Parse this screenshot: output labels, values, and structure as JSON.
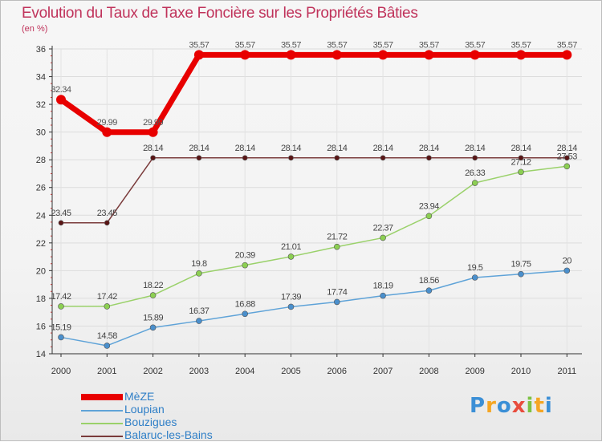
{
  "chart_data": {
    "type": "line",
    "title": "Evolution du Taux de Taxe Foncière sur les Propriétés Bâties",
    "unit": "(en %)",
    "x": [
      "2000",
      "2001",
      "2002",
      "2003",
      "2004",
      "2005",
      "2006",
      "2007",
      "2008",
      "2009",
      "2010",
      "2011"
    ],
    "ylim": [
      14,
      36
    ],
    "yticks": [
      "14",
      "16",
      "18",
      "20",
      "22",
      "24",
      "26",
      "28",
      "30",
      "32",
      "34",
      "36"
    ],
    "series": [
      {
        "name": "MèZE",
        "color": "#e80000",
        "values": [
          32.34,
          29.99,
          29.99,
          35.57,
          35.57,
          35.57,
          35.57,
          35.57,
          35.57,
          35.57,
          35.57,
          35.57
        ],
        "labels": [
          "32.34",
          "29.99",
          "29.99",
          "35.57",
          "35.57",
          "35.57",
          "35.57",
          "35.57",
          "35.57",
          "35.57",
          "35.57",
          "35.57"
        ]
      },
      {
        "name": "Loupian",
        "color": "#5fa3d8",
        "values": [
          15.19,
          14.58,
          15.89,
          16.37,
          16.88,
          17.39,
          17.74,
          18.19,
          18.56,
          19.5,
          19.75,
          20
        ],
        "labels": [
          "15.19",
          "14.58",
          "15.89",
          "16.37",
          "16.88",
          "17.39",
          "17.74",
          "18.19",
          "18.56",
          "19.5",
          "19.75",
          "20"
        ]
      },
      {
        "name": "Bouzigues",
        "color": "#9ad16a",
        "values": [
          17.42,
          17.42,
          18.22,
          19.8,
          20.39,
          21.01,
          21.72,
          22.37,
          23.94,
          26.33,
          27.12,
          27.53
        ],
        "labels": [
          "17.42",
          "17.42",
          "18.22",
          "19.8",
          "20.39",
          "21.01",
          "21.72",
          "22.37",
          "23.94",
          "26.33",
          "27.12",
          "27.53"
        ]
      },
      {
        "name": "Balaruc-les-Bains",
        "color": "#7a3b3b",
        "values": [
          23.45,
          23.45,
          28.14,
          28.14,
          28.14,
          28.14,
          28.14,
          28.14,
          28.14,
          28.14,
          28.14,
          28.14
        ],
        "labels": [
          "23.45",
          "23.45",
          "28.14",
          "28.14",
          "28.14",
          "28.14",
          "28.14",
          "28.14",
          "28.14",
          "28.14",
          "28.14",
          "28.14"
        ]
      }
    ]
  },
  "brand": {
    "letters": [
      "P",
      "r",
      "o",
      "x",
      "i",
      "t",
      "i"
    ]
  }
}
